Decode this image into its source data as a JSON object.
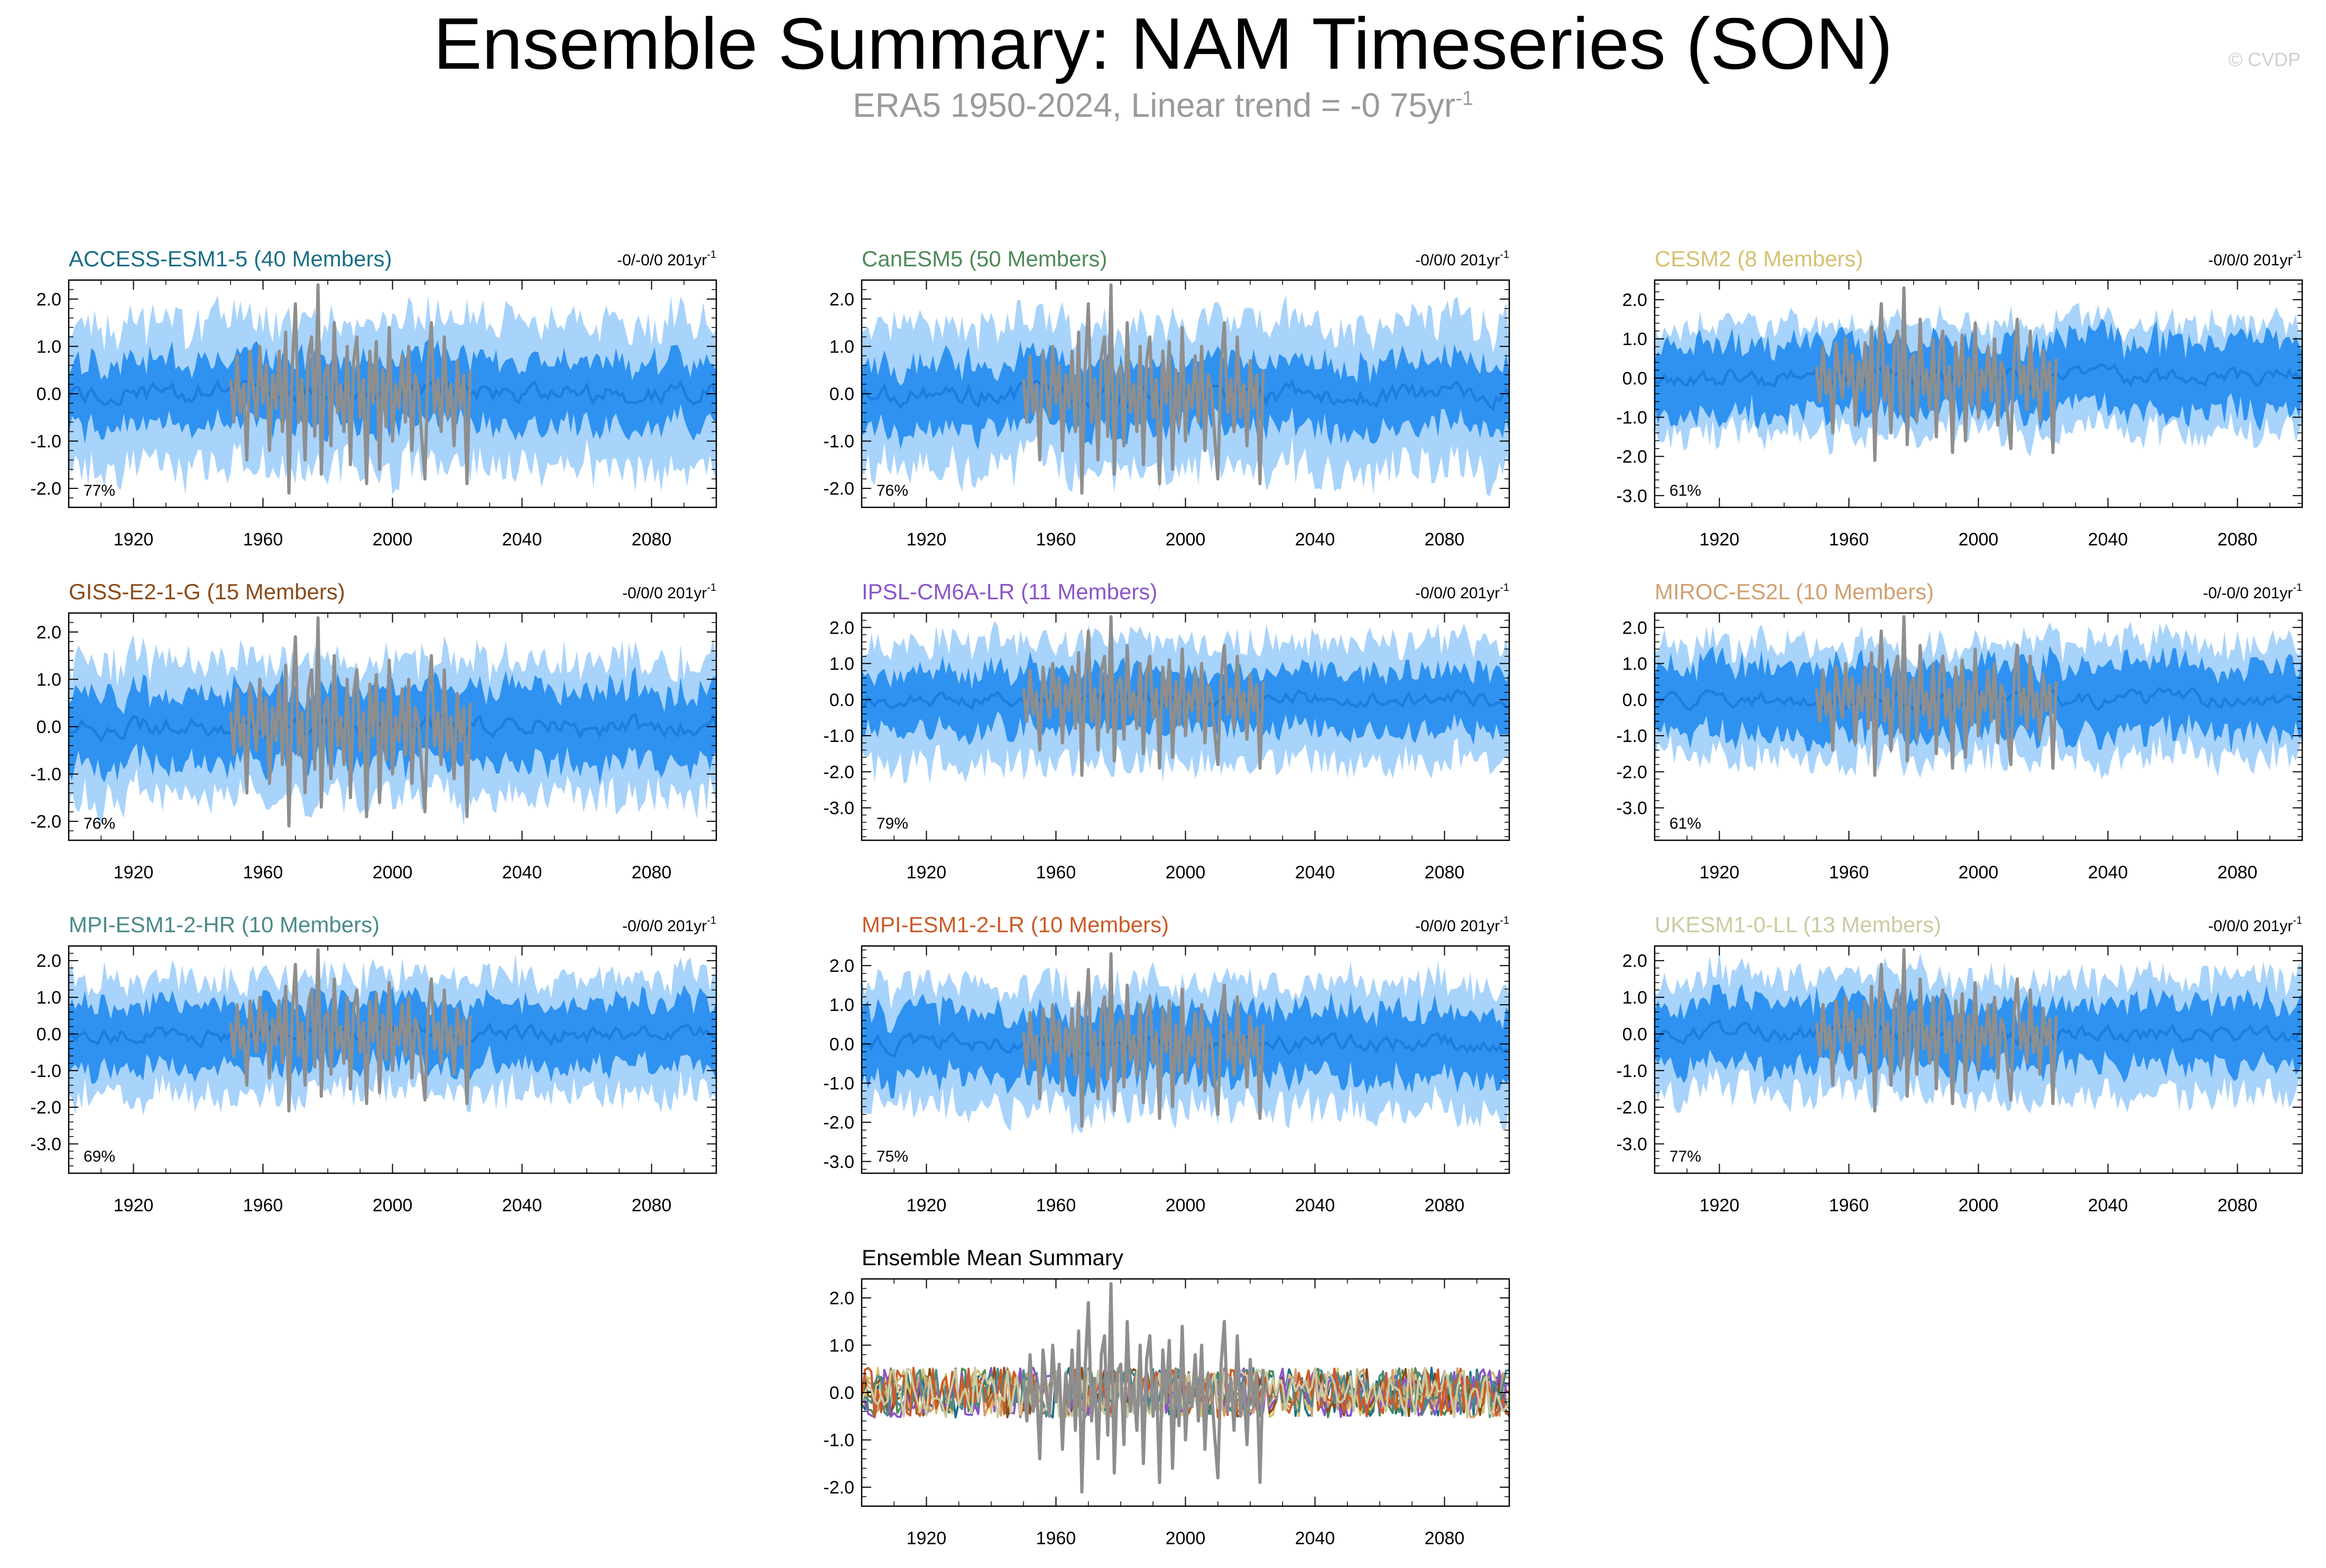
{
  "title": "Ensemble Summary: NAM Timeseries (SON)",
  "subtitle": {
    "text": "ERA5 1950-2024, Linear trend = -0 75yr",
    "superscript": "-1"
  },
  "watermark": "© CVDP",
  "colors": {
    "outer_band": "#a8d3fb",
    "inner_band": "#2f92f0",
    "ens_mean": "#1c7ee0",
    "obs": "#8e8e8e"
  },
  "chart_data": [
    {
      "id": "access",
      "type": "line",
      "title": "ACCESS-ESM1-5 (40 Members)",
      "title_color": "#1b6e86",
      "trend": "-0/-0/0 201yr",
      "trend_sup": "-1",
      "percent": "77%",
      "x_range": [
        1900,
        2100
      ],
      "ylim": [
        -2.4,
        2.4
      ],
      "y_ticks": [
        2.0,
        1.0,
        0.0,
        -1.0,
        -2.0
      ],
      "y_tick_labels": [
        "2.0",
        "1.0",
        "0.0",
        "-1.0",
        "-2.0"
      ],
      "x_ticks": [
        1920,
        1960,
        2000,
        2040,
        2080
      ],
      "x_tick_labels": [
        "1920",
        "1960",
        "2000",
        "2040",
        "2080"
      ],
      "outer": 1.45,
      "inner": 0.72,
      "seed": 11
    },
    {
      "id": "canesm5",
      "type": "line",
      "title": "CanESM5 (50 Members)",
      "title_color": "#4e8a58",
      "trend": "-0/0/0 201yr",
      "trend_sup": "-1",
      "percent": "76%",
      "x_range": [
        1900,
        2100
      ],
      "ylim": [
        -2.4,
        2.4
      ],
      "y_ticks": [
        2.0,
        1.0,
        0.0,
        -1.0,
        -2.0
      ],
      "y_tick_labels": [
        "2.0",
        "1.0",
        "0.0",
        "-1.0",
        "-2.0"
      ],
      "x_ticks": [
        1920,
        1960,
        2000,
        2040,
        2080
      ],
      "x_tick_labels": [
        "1920",
        "1960",
        "2000",
        "2040",
        "2080"
      ],
      "outer": 1.45,
      "inner": 0.72,
      "seed": 23
    },
    {
      "id": "cesm2",
      "type": "line",
      "title": "CESM2 (8 Members)",
      "title_color": "#d6c070",
      "trend": "-0/0/0 201yr",
      "trend_sup": "-1",
      "percent": "61%",
      "x_range": [
        1900,
        2100
      ],
      "ylim": [
        -3.3,
        2.5
      ],
      "y_ticks": [
        2.0,
        1.0,
        0.0,
        -1.0,
        -2.0,
        -3.0
      ],
      "y_tick_labels": [
        "2.0",
        "1.0",
        "0.0",
        "-1.0",
        "-2.0",
        "-3.0"
      ],
      "x_ticks": [
        1920,
        1960,
        2000,
        2040,
        2080
      ],
      "x_tick_labels": [
        "1920",
        "1960",
        "2000",
        "2040",
        "2080"
      ],
      "outer": 1.3,
      "inner": 0.95,
      "seed": 37
    },
    {
      "id": "giss",
      "type": "line",
      "title": "GISS-E2-1-G (15 Members)",
      "title_color": "#8a4a18",
      "trend": "-0/0/0 201yr",
      "trend_sup": "-1",
      "percent": "76%",
      "x_range": [
        1900,
        2100
      ],
      "ylim": [
        -2.4,
        2.4
      ],
      "y_ticks": [
        2.0,
        1.0,
        0.0,
        -1.0,
        -2.0
      ],
      "y_tick_labels": [
        "2.0",
        "1.0",
        "0.0",
        "-1.0",
        "-2.0"
      ],
      "x_ticks": [
        1920,
        1960,
        2000,
        2040,
        2080
      ],
      "x_tick_labels": [
        "1920",
        "1960",
        "2000",
        "2040",
        "2080"
      ],
      "outer": 1.35,
      "inner": 0.8,
      "seed": 41
    },
    {
      "id": "ipsl",
      "type": "line",
      "title": "IPSL-CM6A-LR (11 Members)",
      "title_color": "#8a55c8",
      "trend": "-0/0/0 201yr",
      "trend_sup": "-1",
      "percent": "79%",
      "x_range": [
        1900,
        2100
      ],
      "ylim": [
        -3.9,
        2.4
      ],
      "y_ticks": [
        2.0,
        1.0,
        0.0,
        -1.0,
        -2.0,
        -3.0
      ],
      "y_tick_labels": [
        "2.0",
        "1.0",
        "0.0",
        "-1.0",
        "-2.0",
        "-3.0"
      ],
      "x_ticks": [
        1920,
        1960,
        2000,
        2040,
        2080
      ],
      "x_tick_labels": [
        "1920",
        "1960",
        "2000",
        "2040",
        "2080"
      ],
      "outer": 1.6,
      "inner": 0.85,
      "seed": 53
    },
    {
      "id": "miroc",
      "type": "line",
      "title": "MIROC-ES2L (10 Members)",
      "title_color": "#d0a070",
      "trend": "-0/-0/0 201yr",
      "trend_sup": "-1",
      "percent": "61%",
      "x_range": [
        1900,
        2100
      ],
      "ylim": [
        -3.9,
        2.4
      ],
      "y_ticks": [
        2.0,
        1.0,
        0.0,
        -1.0,
        -2.0,
        -3.0
      ],
      "y_tick_labels": [
        "2.0",
        "1.0",
        "0.0",
        "-1.0",
        "-2.0",
        "-3.0"
      ],
      "x_ticks": [
        1920,
        1960,
        2000,
        2040,
        2080
      ],
      "x_tick_labels": [
        "1920",
        "1960",
        "2000",
        "2040",
        "2080"
      ],
      "outer": 1.5,
      "inner": 1.0,
      "seed": 67
    },
    {
      "id": "mpihr",
      "type": "line",
      "title": "MPI-ESM1-2-HR (10 Members)",
      "title_color": "#4a8a8a",
      "trend": "-0/0/0 201yr",
      "trend_sup": "-1",
      "percent": "69%",
      "x_range": [
        1900,
        2100
      ],
      "ylim": [
        -3.8,
        2.4
      ],
      "y_ticks": [
        2.0,
        1.0,
        0.0,
        -1.0,
        -2.0,
        -3.0
      ],
      "y_tick_labels": [
        "2.0",
        "1.0",
        "0.0",
        "-1.0",
        "-2.0",
        "-3.0"
      ],
      "x_ticks": [
        1920,
        1960,
        2000,
        2040,
        2080
      ],
      "x_tick_labels": [
        "1920",
        "1960",
        "2000",
        "2040",
        "2080"
      ],
      "outer": 1.5,
      "inner": 0.9,
      "seed": 71
    },
    {
      "id": "mpilr",
      "type": "line",
      "title": "MPI-ESM1-2-LR (10 Members)",
      "title_color": "#cc5a28",
      "trend": "-0/0/0 201yr",
      "trend_sup": "-1",
      "percent": "75%",
      "x_range": [
        1900,
        2100
      ],
      "ylim": [
        -3.3,
        2.5
      ],
      "y_ticks": [
        2.0,
        1.0,
        0.0,
        -1.0,
        -2.0,
        -3.0
      ],
      "y_tick_labels": [
        "2.0",
        "1.0",
        "0.0",
        "-1.0",
        "-2.0",
        "-3.0"
      ],
      "x_ticks": [
        1920,
        1960,
        2000,
        2040,
        2080
      ],
      "x_tick_labels": [
        "1920",
        "1960",
        "2000",
        "2040",
        "2080"
      ],
      "outer": 1.5,
      "inner": 0.9,
      "seed": 83
    },
    {
      "id": "ukesm",
      "type": "line",
      "title": "UKESM1-0-LL (13 Members)",
      "title_color": "#cccaa0",
      "trend": "-0/0/0 201yr",
      "trend_sup": "-1",
      "percent": "77%",
      "x_range": [
        1900,
        2100
      ],
      "ylim": [
        -3.8,
        2.4
      ],
      "y_ticks": [
        2.0,
        1.0,
        0.0,
        -1.0,
        -2.0,
        -3.0
      ],
      "y_tick_labels": [
        "2.0",
        "1.0",
        "0.0",
        "-1.0",
        "-2.0",
        "-3.0"
      ],
      "x_ticks": [
        1920,
        1960,
        2000,
        2040,
        2080
      ],
      "x_tick_labels": [
        "1920",
        "1960",
        "2000",
        "2040",
        "2080"
      ],
      "outer": 1.5,
      "inner": 0.9,
      "seed": 97
    },
    {
      "id": "ensmean",
      "type": "line",
      "title": "Ensemble Mean Summary",
      "title_color": "#000000",
      "trend": "",
      "trend_sup": "",
      "percent": "",
      "x_range": [
        1900,
        2100
      ],
      "ylim": [
        -2.4,
        2.4
      ],
      "y_ticks": [
        2.0,
        1.0,
        0.0,
        -1.0,
        -2.0
      ],
      "y_tick_labels": [
        "2.0",
        "1.0",
        "0.0",
        "-1.0",
        "-2.0"
      ],
      "x_ticks": [
        1920,
        1960,
        2000,
        2040,
        2080
      ],
      "x_tick_labels": [
        "1920",
        "1960",
        "2000",
        "2040",
        "2080"
      ],
      "series_colors": [
        "#1b6e86",
        "#4e8a58",
        "#d6c070",
        "#8a4a18",
        "#8a55c8",
        "#d0a070",
        "#4a8a8a",
        "#cc5a28",
        "#cccaa0"
      ],
      "seed": 131
    }
  ],
  "observations": {
    "name": "ERA5",
    "years": [
      1950,
      1951,
      1952,
      1953,
      1954,
      1955,
      1956,
      1957,
      1958,
      1959,
      1960,
      1961,
      1962,
      1963,
      1964,
      1965,
      1966,
      1967,
      1968,
      1969,
      1970,
      1971,
      1972,
      1973,
      1974,
      1975,
      1976,
      1977,
      1978,
      1979,
      1980,
      1981,
      1982,
      1983,
      1984,
      1985,
      1986,
      1987,
      1988,
      1989,
      1990,
      1991,
      1992,
      1993,
      1994,
      1995,
      1996,
      1997,
      1998,
      1999,
      2000,
      2001,
      2002,
      2003,
      2004,
      2005,
      2006,
      2007,
      2008,
      2009,
      2010,
      2011,
      2012,
      2013,
      2014,
      2015,
      2016,
      2017,
      2018,
      2019,
      2020,
      2021,
      2022,
      2023,
      2024
    ],
    "values": [
      0.3,
      -0.6,
      0.8,
      -0.4,
      0.2,
      -1.4,
      0.9,
      0.1,
      -0.5,
      1.0,
      -0.2,
      0.6,
      -1.2,
      0.4,
      -0.3,
      0.9,
      -0.8,
      1.3,
      -2.1,
      0.5,
      1.9,
      -0.6,
      0.3,
      -1.4,
      0.8,
      1.2,
      -0.9,
      2.3,
      -1.7,
      0.4,
      0.6,
      -1.1,
      1.5,
      -0.4,
      0.2,
      -0.8,
      1.0,
      -1.5,
      0.7,
      1.2,
      -0.5,
      0.3,
      -1.9,
      0.9,
      -0.2,
      1.1,
      -1.6,
      0.5,
      -0.7,
      1.4,
      -1.0,
      0.2,
      -0.3,
      0.8,
      -0.6,
      1.0,
      -1.2,
      0.4,
      0.1,
      -0.9,
      -1.8,
      0.6,
      1.5,
      -0.4,
      0.3,
      -0.8,
      1.2,
      -0.5,
      0.2,
      -1.1,
      0.7,
      -0.3,
      0.4,
      -1.9,
      0.5
    ]
  }
}
